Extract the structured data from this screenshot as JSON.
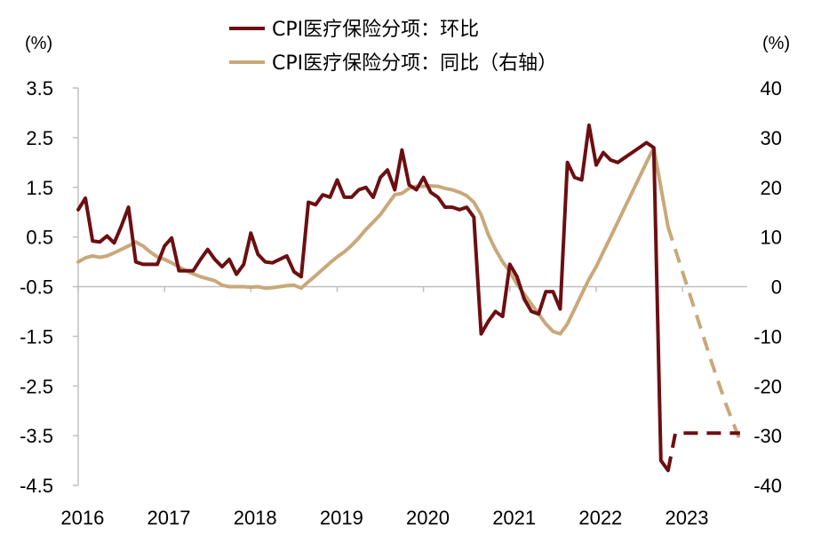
{
  "chart_data": {
    "type": "line",
    "title": "",
    "left_axis": {
      "unit": "(%)",
      "ylim": [
        -4.5,
        3.5
      ],
      "ticks": [
        "3.5",
        "2.5",
        "1.5",
        "0.5",
        "-0.5",
        "-1.5",
        "-2.5",
        "-3.5",
        "-4.5"
      ]
    },
    "right_axis": {
      "unit": "(%)",
      "ylim": [
        -40,
        40
      ],
      "ticks": [
        "40",
        "30",
        "20",
        "10",
        "0",
        "-10",
        "-20",
        "-30",
        "-40"
      ]
    },
    "x_axis": {
      "range": [
        2016.0,
        2023.75
      ],
      "tick_labels": [
        "2016",
        "2017",
        "2018",
        "2019",
        "2020",
        "2021",
        "2022",
        "2023"
      ],
      "tick_values": [
        2016,
        2017,
        2018,
        2019,
        2020,
        2021,
        2022,
        2023
      ]
    },
    "grid": false,
    "legend_position": "top-center",
    "series": [
      {
        "name": "CPI医疗保险分项：环比",
        "axis": "left",
        "color": "#6B0F12",
        "points": [
          [
            2016.0,
            1.05
          ],
          [
            2016.083,
            1.28
          ],
          [
            2016.167,
            0.42
          ],
          [
            2016.25,
            0.4
          ],
          [
            2016.333,
            0.52
          ],
          [
            2016.417,
            0.38
          ],
          [
            2016.5,
            0.72
          ],
          [
            2016.583,
            1.1
          ],
          [
            2016.667,
            0.0
          ],
          [
            2016.75,
            -0.05
          ],
          [
            2016.833,
            -0.05
          ],
          [
            2016.917,
            -0.05
          ],
          [
            2017.0,
            0.32
          ],
          [
            2017.083,
            0.48
          ],
          [
            2017.167,
            -0.18
          ],
          [
            2017.25,
            -0.18
          ],
          [
            2017.333,
            -0.18
          ],
          [
            2017.417,
            0.05
          ],
          [
            2017.5,
            0.25
          ],
          [
            2017.583,
            0.05
          ],
          [
            2017.667,
            -0.1
          ],
          [
            2017.75,
            0.05
          ],
          [
            2017.833,
            -0.25
          ],
          [
            2017.917,
            -0.05
          ],
          [
            2018.0,
            0.58
          ],
          [
            2018.083,
            0.15
          ],
          [
            2018.167,
            0.0
          ],
          [
            2018.25,
            -0.02
          ],
          [
            2018.333,
            0.05
          ],
          [
            2018.417,
            0.12
          ],
          [
            2018.5,
            -0.2
          ],
          [
            2018.583,
            -0.3
          ],
          [
            2018.667,
            1.2
          ],
          [
            2018.75,
            1.15
          ],
          [
            2018.833,
            1.35
          ],
          [
            2018.917,
            1.3
          ],
          [
            2019.0,
            1.65
          ],
          [
            2019.083,
            1.3
          ],
          [
            2019.167,
            1.3
          ],
          [
            2019.25,
            1.45
          ],
          [
            2019.333,
            1.5
          ],
          [
            2019.417,
            1.3
          ],
          [
            2019.5,
            1.7
          ],
          [
            2019.583,
            1.85
          ],
          [
            2019.667,
            1.45
          ],
          [
            2019.75,
            2.25
          ],
          [
            2019.833,
            1.55
          ],
          [
            2019.917,
            1.45
          ],
          [
            2020.0,
            1.7
          ],
          [
            2020.083,
            1.4
          ],
          [
            2020.167,
            1.3
          ],
          [
            2020.25,
            1.1
          ],
          [
            2020.333,
            1.1
          ],
          [
            2020.417,
            1.05
          ],
          [
            2020.5,
            1.1
          ],
          [
            2020.583,
            0.9
          ],
          [
            2020.667,
            -1.45
          ],
          [
            2020.75,
            -1.2
          ],
          [
            2020.833,
            -1.0
          ],
          [
            2020.917,
            -1.1
          ],
          [
            2021.0,
            -0.05
          ],
          [
            2021.083,
            -0.3
          ],
          [
            2021.167,
            -0.75
          ],
          [
            2021.25,
            -1.0
          ],
          [
            2021.333,
            -1.05
          ],
          [
            2021.417,
            -0.6
          ],
          [
            2021.5,
            -0.6
          ],
          [
            2021.583,
            -0.95
          ],
          [
            2021.667,
            2.0
          ],
          [
            2021.75,
            1.7
          ],
          [
            2021.833,
            1.65
          ],
          [
            2021.917,
            2.75
          ],
          [
            2022.0,
            1.95
          ],
          [
            2022.083,
            2.2
          ],
          [
            2022.167,
            2.05
          ],
          [
            2022.25,
            2.0
          ],
          [
            2022.333,
            2.1
          ],
          [
            2022.417,
            2.2
          ],
          [
            2022.5,
            2.3
          ],
          [
            2022.583,
            2.4
          ],
          [
            2022.667,
            2.3
          ],
          [
            2022.75,
            -4.0
          ],
          [
            2022.833,
            -4.2
          ]
        ],
        "forecast": [
          [
            2022.833,
            -4.2
          ],
          [
            2022.917,
            -3.45
          ],
          [
            2023.0,
            -3.45
          ],
          [
            2023.167,
            -3.45
          ],
          [
            2023.333,
            -3.45
          ],
          [
            2023.5,
            -3.45
          ],
          [
            2023.667,
            -3.45
          ]
        ]
      },
      {
        "name": "CPI医疗保险分项：同比（右轴）",
        "axis": "right",
        "color": "#C9A87A",
        "points": [
          [
            2016.0,
            5.0
          ],
          [
            2016.083,
            5.8
          ],
          [
            2016.167,
            6.2
          ],
          [
            2016.25,
            5.9
          ],
          [
            2016.333,
            6.2
          ],
          [
            2016.417,
            6.8
          ],
          [
            2016.5,
            7.5
          ],
          [
            2016.583,
            8.2
          ],
          [
            2016.667,
            9.0
          ],
          [
            2016.75,
            8.2
          ],
          [
            2016.833,
            7.0
          ],
          [
            2016.917,
            6.0
          ],
          [
            2017.0,
            5.5
          ],
          [
            2017.083,
            4.8
          ],
          [
            2017.167,
            4.0
          ],
          [
            2017.25,
            3.2
          ],
          [
            2017.333,
            2.6
          ],
          [
            2017.417,
            2.0
          ],
          [
            2017.5,
            1.6
          ],
          [
            2017.583,
            1.2
          ],
          [
            2017.667,
            0.3
          ],
          [
            2017.75,
            0.0
          ],
          [
            2017.833,
            0.0
          ],
          [
            2017.917,
            0.0
          ],
          [
            2018.0,
            -0.1
          ],
          [
            2018.083,
            0.0
          ],
          [
            2018.167,
            -0.3
          ],
          [
            2018.25,
            -0.2
          ],
          [
            2018.333,
            0.0
          ],
          [
            2018.417,
            0.2
          ],
          [
            2018.5,
            0.3
          ],
          [
            2018.583,
            -0.3
          ],
          [
            2018.667,
            1.0
          ],
          [
            2018.75,
            2.2
          ],
          [
            2018.833,
            3.5
          ],
          [
            2018.917,
            4.8
          ],
          [
            2019.0,
            6.0
          ],
          [
            2019.083,
            7.0
          ],
          [
            2019.167,
            8.3
          ],
          [
            2019.25,
            9.8
          ],
          [
            2019.333,
            11.5
          ],
          [
            2019.417,
            13.0
          ],
          [
            2019.5,
            14.5
          ],
          [
            2019.583,
            16.5
          ],
          [
            2019.667,
            18.5
          ],
          [
            2019.75,
            18.8
          ],
          [
            2019.833,
            19.8
          ],
          [
            2019.917,
            20.2
          ],
          [
            2020.0,
            20.2
          ],
          [
            2020.083,
            20.3
          ],
          [
            2020.167,
            20.2
          ],
          [
            2020.25,
            19.8
          ],
          [
            2020.333,
            19.5
          ],
          [
            2020.417,
            19.0
          ],
          [
            2020.5,
            18.3
          ],
          [
            2020.583,
            17.0
          ],
          [
            2020.667,
            14.5
          ],
          [
            2020.75,
            10.5
          ],
          [
            2020.833,
            7.5
          ],
          [
            2020.917,
            5.0
          ],
          [
            2021.0,
            3.0
          ],
          [
            2021.083,
            0.5
          ],
          [
            2021.167,
            -1.5
          ],
          [
            2021.25,
            -3.5
          ],
          [
            2021.333,
            -5.5
          ],
          [
            2021.417,
            -7.5
          ],
          [
            2021.5,
            -9.0
          ],
          [
            2021.583,
            -9.5
          ],
          [
            2021.667,
            -7.5
          ],
          [
            2021.75,
            -4.5
          ],
          [
            2021.833,
            -1.5
          ],
          [
            2021.917,
            1.5
          ],
          [
            2022.0,
            4.0
          ],
          [
            2022.083,
            7.0
          ],
          [
            2022.167,
            10.0
          ],
          [
            2022.25,
            13.0
          ],
          [
            2022.333,
            16.0
          ],
          [
            2022.417,
            19.0
          ],
          [
            2022.5,
            22.0
          ],
          [
            2022.583,
            25.0
          ],
          [
            2022.667,
            28.0
          ],
          [
            2022.75,
            20.0
          ],
          [
            2022.833,
            12.0
          ]
        ],
        "forecast": [
          [
            2022.833,
            12.0
          ],
          [
            2023.0,
            3.0
          ],
          [
            2023.167,
            -6.0
          ],
          [
            2023.333,
            -15.0
          ],
          [
            2023.5,
            -23.5
          ],
          [
            2023.667,
            -31.0
          ]
        ]
      }
    ]
  }
}
